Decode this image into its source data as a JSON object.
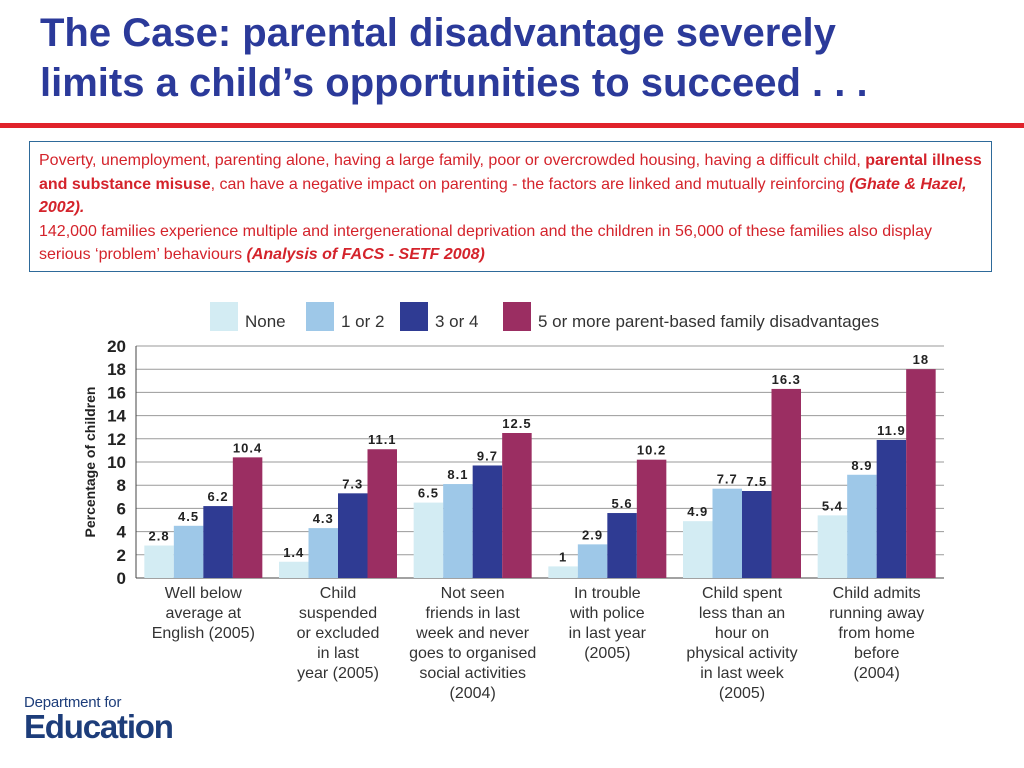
{
  "title": {
    "line1": "The Case: parental disadvantage severely",
    "line2": "limits a child’s opportunities to succeed . . ."
  },
  "textbox": {
    "p1_a": "Poverty, unemployment, parenting alone, having a large family, poor or overcrowded housing, having a difficult child, ",
    "p1_bold": "parental illness and substance misuse",
    "p1_b": ", can have a negative impact on parenting - the factors are linked and mutually reinforcing ",
    "p1_ref": "(Ghate & Hazel, 2002).",
    "p2_a": "142,000 families experience multiple and intergenerational deprivation and the children in 56,000 of these families also display serious ‘problem’ behaviours ",
    "p2_ref": "(Analysis of FACS - SETF 2008)"
  },
  "logo": {
    "top": "Department for",
    "main": "Education"
  },
  "chart_data": {
    "type": "bar",
    "ylabel": "Percentage of children",
    "ylim": [
      0,
      20
    ],
    "yticks": [
      0,
      2,
      4,
      6,
      8,
      10,
      12,
      14,
      16,
      18,
      20
    ],
    "legend_position": "top",
    "categories": [
      [
        "Well below",
        "average at",
        "English (2005)"
      ],
      [
        "Child",
        "suspended",
        "or excluded",
        "in last",
        "year (2005)"
      ],
      [
        "Not seen",
        "friends in last",
        "week and never",
        "goes to organised",
        "social activities",
        "(2004)"
      ],
      [
        "In trouble",
        "with police",
        "in last year",
        "(2005)"
      ],
      [
        "Child spent",
        "less than an",
        "hour on",
        "physical activity",
        "in last week",
        "(2005)"
      ],
      [
        "Child admits",
        "running away",
        "from home",
        "before",
        "(2004)"
      ]
    ],
    "series": [
      {
        "name": "None",
        "color": "#d3ecf3",
        "values": [
          2.8,
          1.4,
          6.5,
          1,
          4.9,
          5.4
        ],
        "labels": [
          "2.8",
          "1.4",
          "6.5",
          "1",
          "4.9",
          "5.4"
        ]
      },
      {
        "name": "1 or 2",
        "color": "#9ec8e8",
        "values": [
          4.5,
          4.3,
          8.1,
          2.9,
          7.7,
          8.9
        ],
        "labels": [
          "4.5",
          "4.3",
          "8.1",
          "2.9",
          "7.7",
          "8.9"
        ]
      },
      {
        "name": "3 or 4",
        "color": "#2f3b93",
        "values": [
          6.2,
          7.3,
          9.7,
          5.6,
          7.5,
          11.9
        ],
        "labels": [
          "6.2",
          "7.3",
          "9.7",
          "5.6",
          "7.5",
          "11.9"
        ]
      },
      {
        "name": "5 or more parent-based family disadvantages",
        "color": "#9b2e62",
        "values": [
          10.4,
          11.1,
          12.5,
          10.2,
          16.3,
          18
        ],
        "labels": [
          "10.4",
          "11.1",
          "12.5",
          "10.2",
          "16.3",
          "18"
        ]
      }
    ]
  }
}
